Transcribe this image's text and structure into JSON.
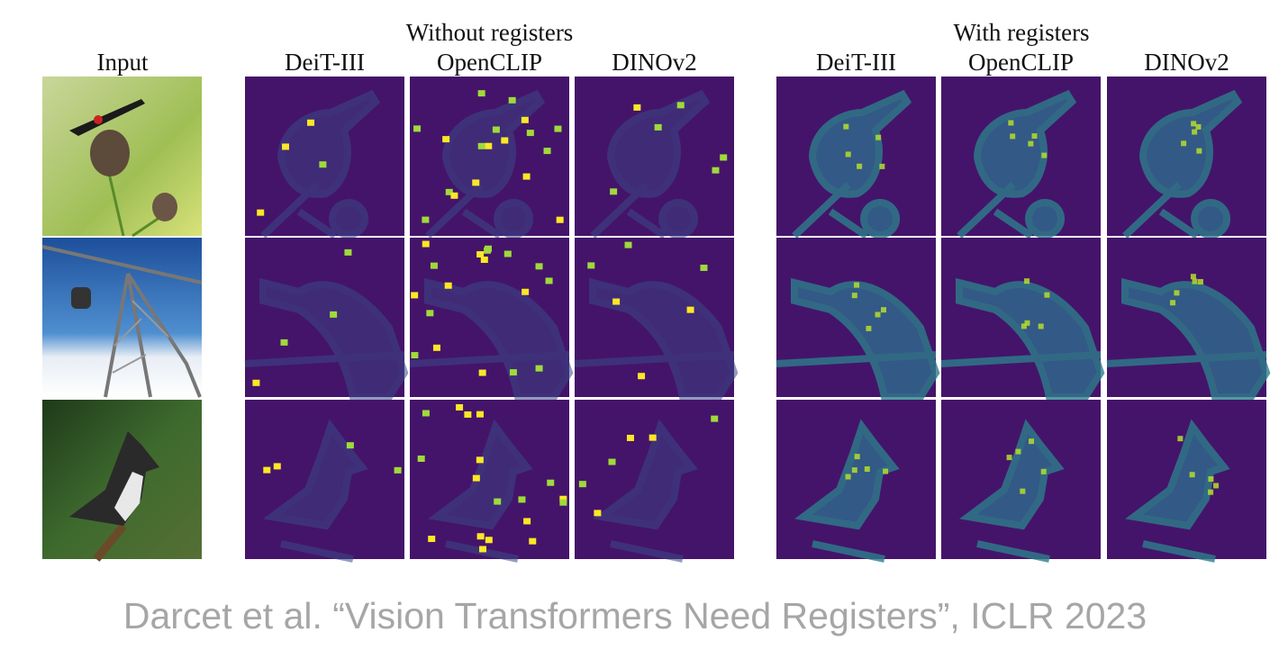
{
  "header": {
    "input_label": "Input",
    "groups": [
      {
        "title": "Without registers",
        "columns": [
          "DeiT-III",
          "OpenCLIP",
          "DINOv2"
        ]
      },
      {
        "title": "With registers",
        "columns": [
          "DeiT-III",
          "OpenCLIP",
          "DINOv2"
        ]
      }
    ]
  },
  "caption": "Darcet et al. “Vision Transformers Need Registers”, ICLR 2023"
}
